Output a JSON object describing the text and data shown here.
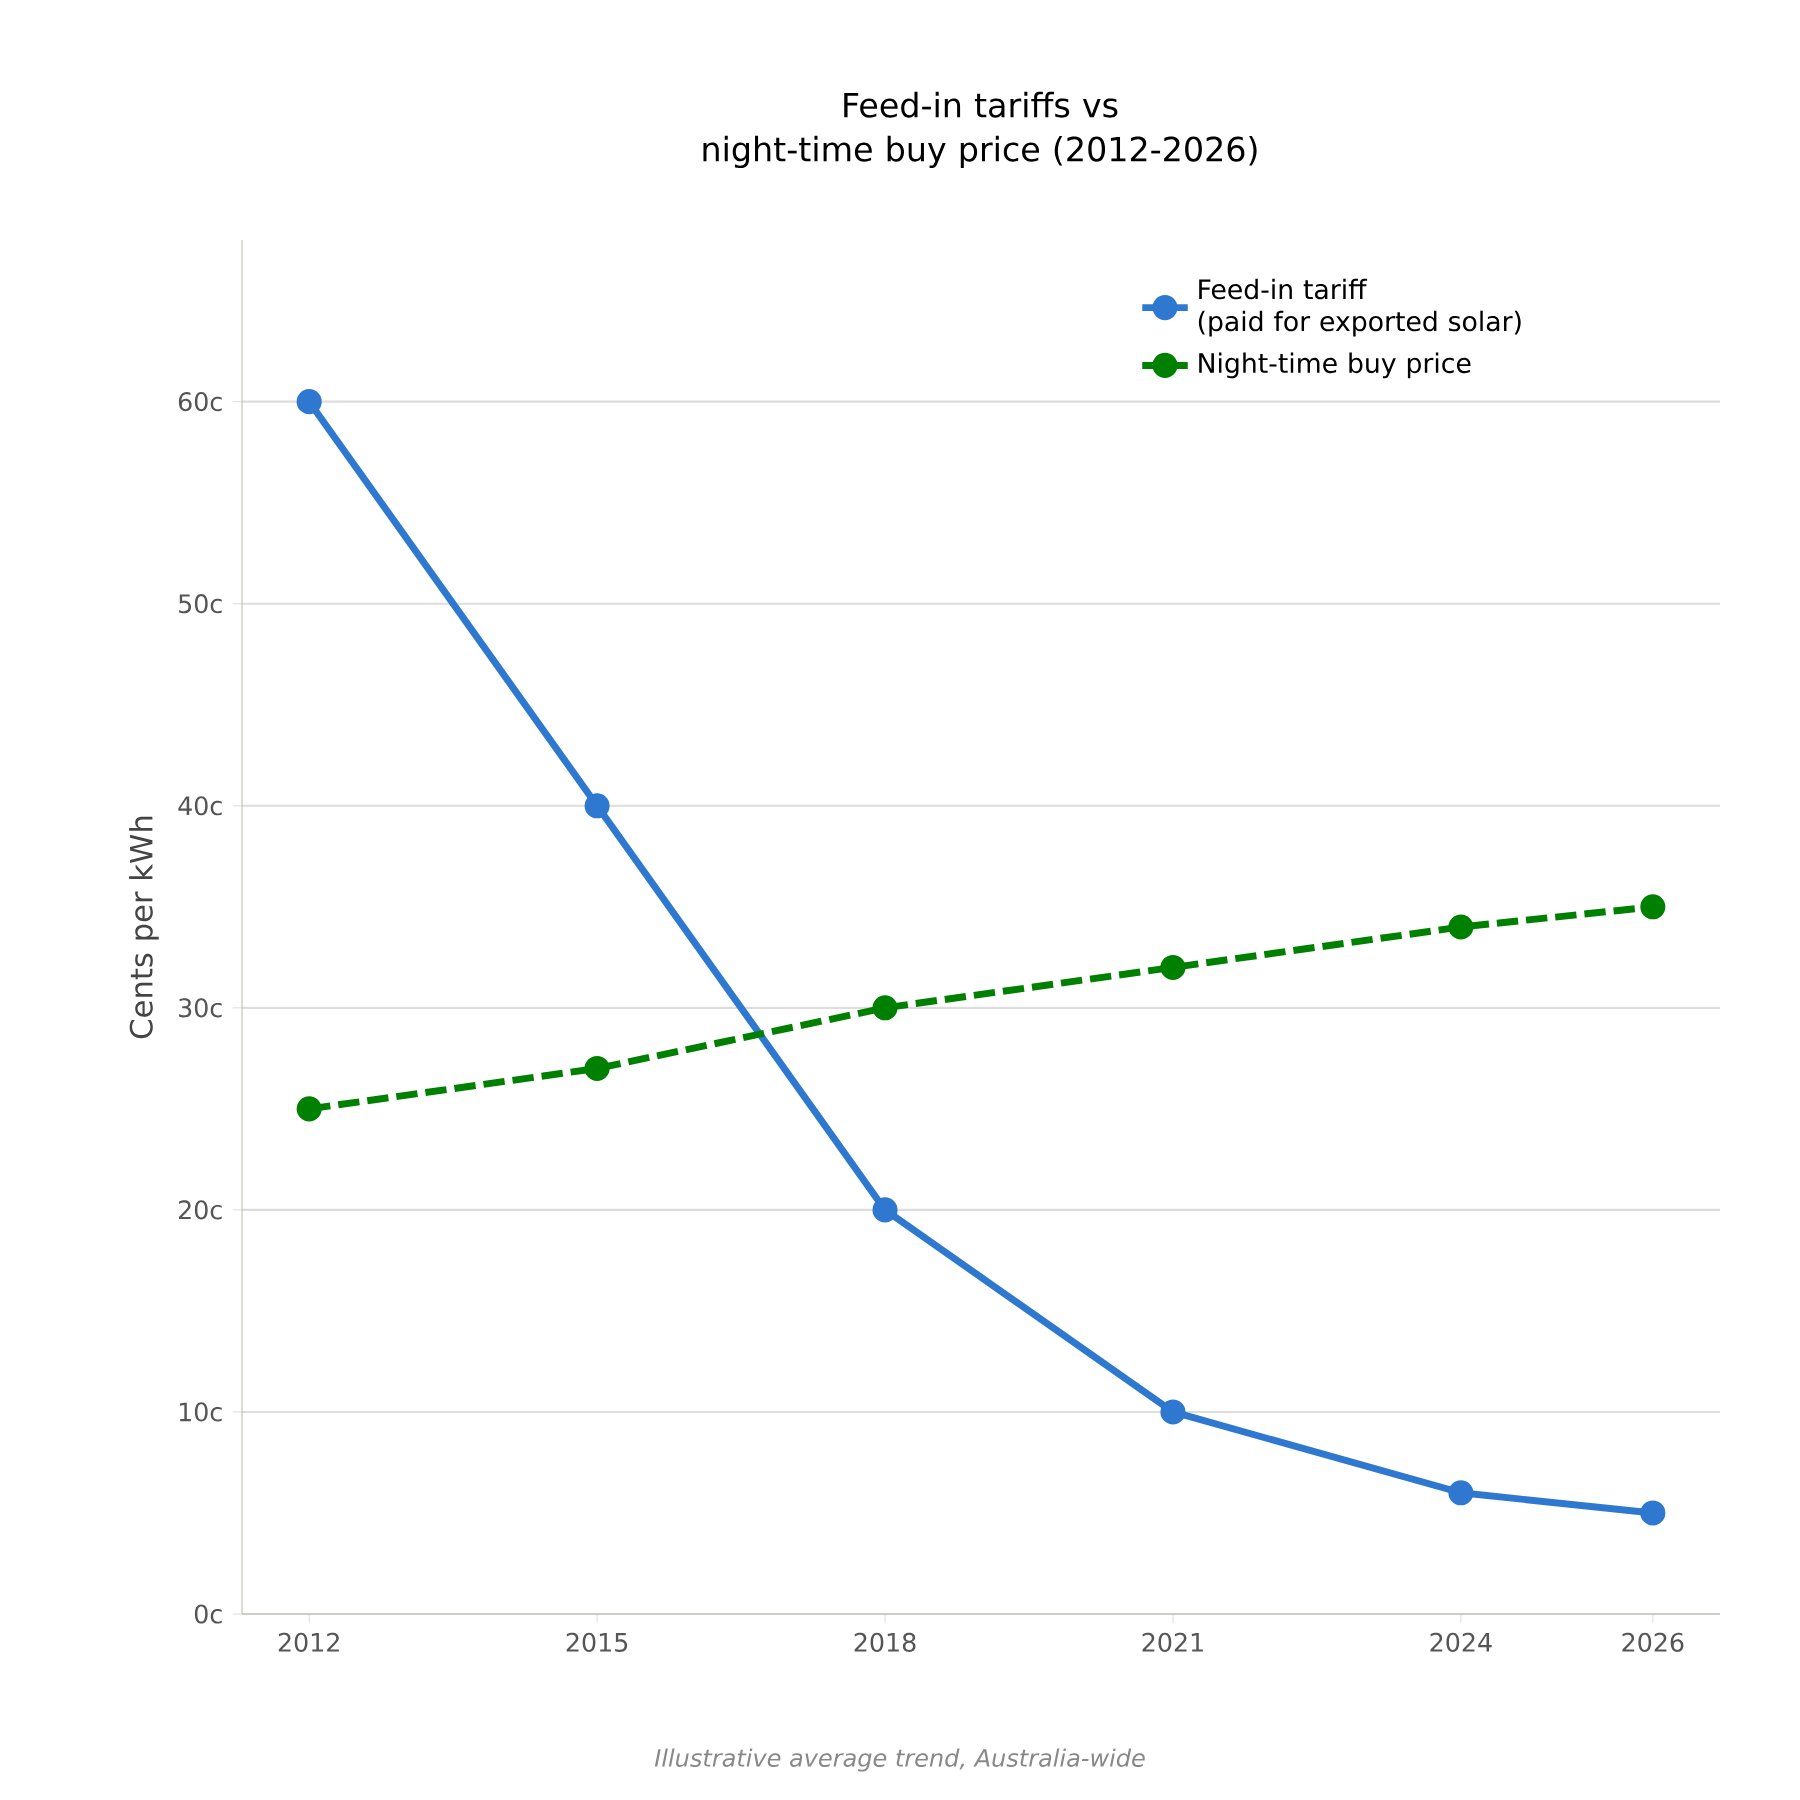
{
  "chart_data": {
    "type": "line",
    "title": "Feed-in tariffs vs\nnight-time buy price (2012-2026)",
    "ylabel": "Cents per kWh",
    "annotations": [
      "Illustrative average trend, Australia-wide"
    ],
    "x": [
      2012,
      2015,
      2018,
      2021,
      2024,
      2026
    ],
    "series": [
      {
        "name": "Feed-in tariff\n(paid for exported solar)",
        "color": "#2f78cf",
        "values": [
          60,
          40,
          20,
          10,
          6,
          5
        ],
        "line_style": "solid"
      },
      {
        "name": "Night-time buy price",
        "color": "#008000",
        "values": [
          25,
          27,
          30,
          32,
          34,
          35
        ],
        "line_style": "dashed"
      }
    ],
    "xlim": [
      2011.3,
      2026.7
    ],
    "ylim": [
      0,
      68
    ],
    "xticks": [
      2012,
      2015,
      2018,
      2021,
      2024,
      2026
    ],
    "yticks": [
      {
        "value": 0,
        "label": "0c"
      },
      {
        "value": 10,
        "label": "10c"
      },
      {
        "value": 20,
        "label": "20c"
      },
      {
        "value": 30,
        "label": "30c"
      },
      {
        "value": 40,
        "label": "40c"
      },
      {
        "value": 50,
        "label": "50c"
      },
      {
        "value": 60,
        "label": "60c"
      }
    ],
    "grid": "y",
    "legend": "top right",
    "marker": "circle"
  }
}
